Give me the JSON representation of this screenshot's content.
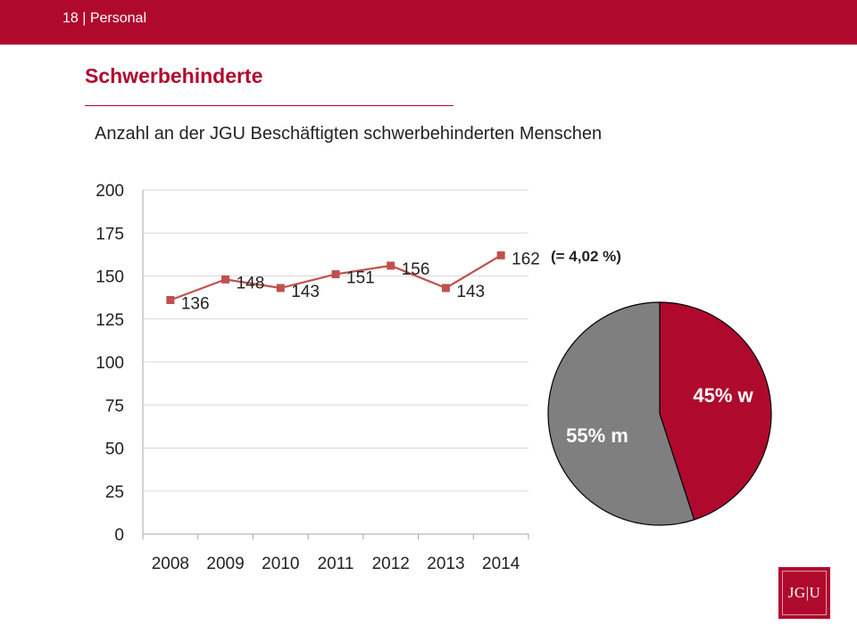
{
  "header": {
    "slide_label": "18 | Personal"
  },
  "title": "Schwerbehinderte",
  "subtitle": "Anzahl an der JGU Beschäftigten schwerbehinderten Menschen",
  "logo": {
    "text": "JG|U"
  },
  "colors": {
    "accent": "#b0092e",
    "line": "#c0504d",
    "grey": "#7f7f7f"
  },
  "chart_data": [
    {
      "type": "line",
      "categories": [
        "2008",
        "2009",
        "2010",
        "2011",
        "2012",
        "2013",
        "2014"
      ],
      "series": [
        {
          "name": "Schwerbehinderte",
          "values": [
            136,
            148,
            143,
            151,
            156,
            143,
            162
          ]
        }
      ],
      "data_labels": [
        "136",
        "148",
        "143",
        "151",
        "156",
        "143",
        "162"
      ],
      "yticks": [
        "0",
        "25",
        "50",
        "75",
        "100",
        "125",
        "150",
        "175",
        "200"
      ],
      "ylim": [
        0,
        200
      ],
      "annotation": "(= 4,02 %)",
      "title": "",
      "xlabel": "",
      "ylabel": ""
    },
    {
      "type": "pie",
      "slices": [
        {
          "name": "w",
          "value": 45,
          "label": "45% w",
          "color": "#b0092e"
        },
        {
          "name": "m",
          "value": 55,
          "label": "55% m",
          "color": "#7f7f7f"
        }
      ]
    }
  ]
}
